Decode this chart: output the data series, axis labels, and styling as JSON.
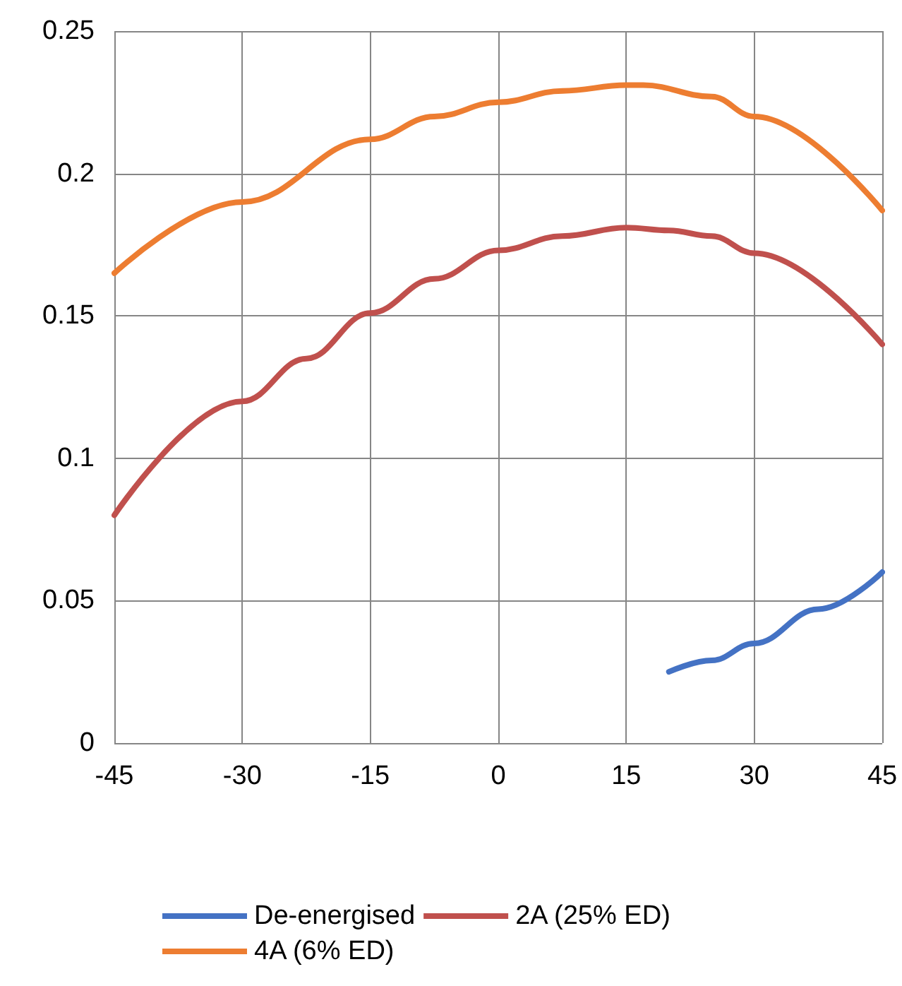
{
  "chart_data": {
    "type": "line",
    "xlim": [
      -45,
      45
    ],
    "xticks": [
      -45,
      -30,
      -15,
      0,
      15,
      30,
      45
    ],
    "ylim": [
      0,
      0.25
    ],
    "yticks": [
      0,
      0.05,
      0.1,
      0.15,
      0.2,
      0.25
    ],
    "grid": true,
    "legend": "bottom",
    "marker": "none",
    "line_style": "solid",
    "series": [
      {
        "name": "De-energised",
        "color": "#4472c4",
        "x": [
          20,
          25,
          30,
          37.5,
          45
        ],
        "values": [
          0.025,
          0.029,
          0.035,
          0.047,
          0.06
        ]
      },
      {
        "name": "2A (25% ED)",
        "color": "#c0504d",
        "x": [
          -45,
          -30,
          -22.5,
          -15,
          -7.5,
          0,
          7.5,
          15,
          20,
          25,
          30,
          45
        ],
        "values": [
          0.08,
          0.12,
          0.135,
          0.151,
          0.163,
          0.173,
          0.178,
          0.181,
          0.18,
          0.178,
          0.172,
          0.14
        ]
      },
      {
        "name": "4A (6% ED)",
        "color": "#ed7d31",
        "x": [
          -45,
          -30,
          -15,
          -7.5,
          0,
          7.5,
          15,
          17,
          25,
          30,
          45
        ],
        "values": [
          0.165,
          0.19,
          0.212,
          0.22,
          0.225,
          0.229,
          0.231,
          0.231,
          0.227,
          0.22,
          0.187
        ]
      }
    ]
  }
}
